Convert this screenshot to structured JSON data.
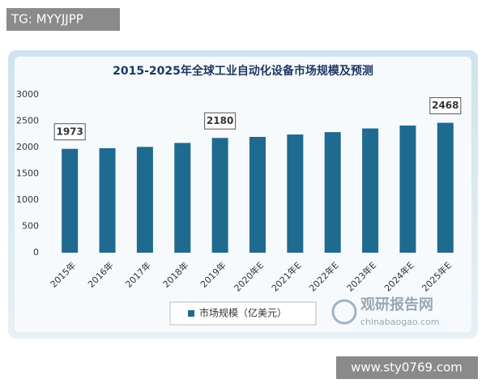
{
  "chart_data": {
    "type": "bar",
    "title": "2015-2025年全球工业自动化设备市场规模及预测",
    "categories": [
      "2015年",
      "2016年",
      "2017年",
      "2018年",
      "2019年",
      "2020年E",
      "2021年E",
      "2022年E",
      "2023年E",
      "2024年E",
      "2025年E"
    ],
    "series": [
      {
        "name": "市场规模（亿美元）",
        "color": "#1f6a8f",
        "values": [
          1973,
          1985,
          2010,
          2085,
          2180,
          2200,
          2245,
          2290,
          2360,
          2415,
          2468
        ],
        "value_labels": [
          "1973",
          null,
          null,
          null,
          "2180",
          null,
          null,
          null,
          null,
          null,
          "2468"
        ]
      }
    ],
    "ylim": [
      0,
      3000
    ],
    "yticks": [
      0,
      500,
      1000,
      1500,
      2000,
      2500,
      3000
    ],
    "grid": false
  },
  "watermarks": {
    "top_left": "TG: MYYJJPP",
    "bottom_right": "www.sty0769.com",
    "logo": "观研报告网",
    "logo_url": "chinabaogao.com"
  }
}
